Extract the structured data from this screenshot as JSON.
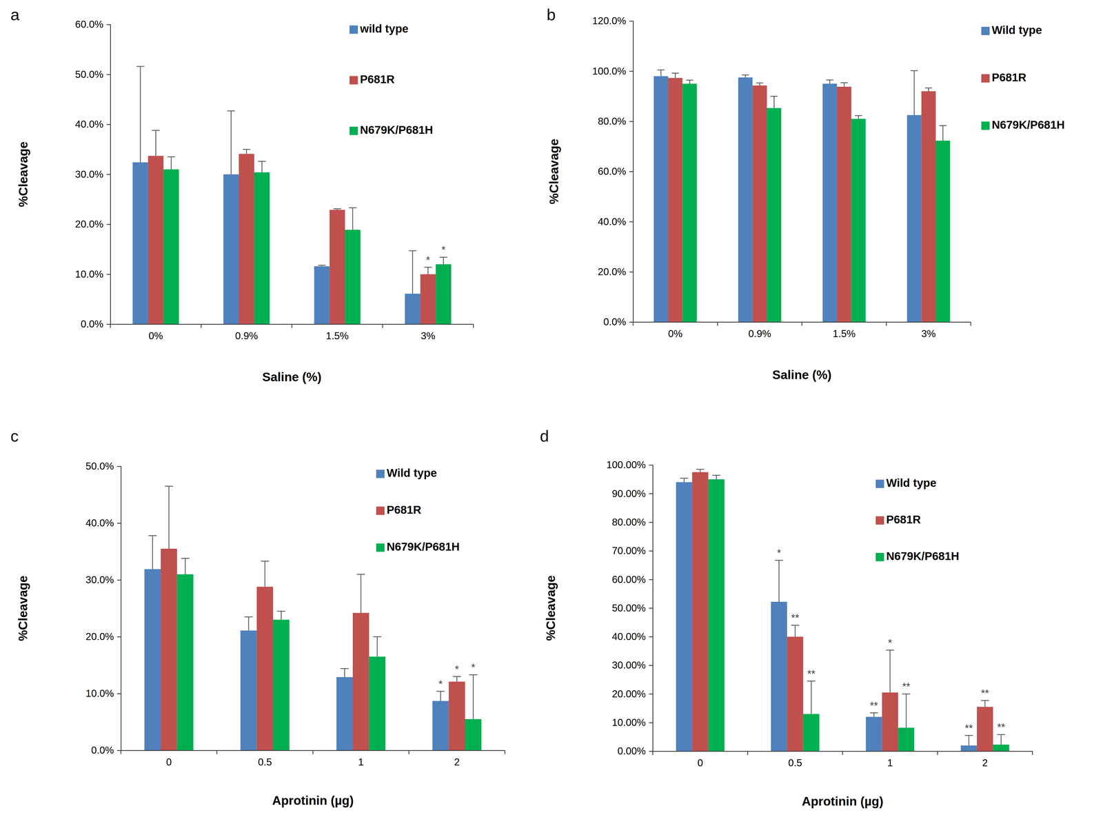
{
  "chart_data": [
    {
      "type": "bar",
      "title": "a",
      "x_label": "Saline (%)",
      "y_label": "%Cleavage",
      "categories": [
        "0%",
        "0.9%",
        "1.5%",
        "3%"
      ],
      "ylim": [
        0,
        60
      ],
      "yticks": [
        {
          "value": 0,
          "label": "0.0%"
        },
        {
          "value": 10,
          "label": "10.0%"
        },
        {
          "value": 20,
          "label": "20.0%"
        },
        {
          "value": 30,
          "label": "30.0%"
        },
        {
          "value": 40,
          "label": "40.0%"
        },
        {
          "value": 50,
          "label": "50.0%"
        },
        {
          "value": 60,
          "label": "60.0%"
        }
      ],
      "legend": "top-right",
      "series": [
        {
          "name": "wild type",
          "color": "#4f81bd",
          "values": [
            32.4,
            30.0,
            11.6,
            6.1
          ],
          "errors": [
            19.2,
            12.7,
            0.2,
            8.6
          ],
          "annotations": [
            null,
            null,
            null,
            null
          ]
        },
        {
          "name": "P681R",
          "color": "#c0504d",
          "values": [
            33.7,
            34.1,
            22.9,
            10.0
          ],
          "errors": [
            5.1,
            0.9,
            0.2,
            1.4
          ],
          "annotations": [
            null,
            null,
            null,
            "*"
          ]
        },
        {
          "name": "N679K/P681H",
          "color": "#00b050",
          "values": [
            31.0,
            30.4,
            18.9,
            12.0
          ],
          "errors": [
            2.5,
            2.2,
            4.4,
            1.4
          ],
          "annotations": [
            null,
            null,
            null,
            "*"
          ]
        }
      ]
    },
    {
      "type": "bar",
      "title": "b",
      "x_label": "Saline (%)",
      "y_label": "%Cleavage",
      "categories": [
        "0%",
        "0.9%",
        "1.5%",
        "3%"
      ],
      "ylim": [
        0,
        120
      ],
      "yticks": [
        {
          "value": 0,
          "label": "0.0%"
        },
        {
          "value": 20,
          "label": "20.0%"
        },
        {
          "value": 40,
          "label": "40.0%"
        },
        {
          "value": 60,
          "label": "60.0%"
        },
        {
          "value": 80,
          "label": "80.0%"
        },
        {
          "value": 100,
          "label": "100.0%"
        },
        {
          "value": 120,
          "label": "120.0%"
        }
      ],
      "legend": "top-right",
      "series": [
        {
          "name": "Wild type",
          "color": "#4f81bd",
          "values": [
            98.0,
            97.5,
            95.0,
            82.5
          ],
          "errors": [
            2.5,
            1.0,
            1.5,
            17.7
          ],
          "annotations": [
            null,
            null,
            null,
            null
          ]
        },
        {
          "name": "P681R",
          "color": "#c0504d",
          "values": [
            97.3,
            94.3,
            93.8,
            92.0
          ],
          "errors": [
            1.9,
            1.0,
            1.6,
            1.3
          ],
          "annotations": [
            null,
            null,
            null,
            null
          ]
        },
        {
          "name": "N679K/P681H",
          "color": "#00b050",
          "values": [
            95.0,
            85.3,
            81.0,
            72.3
          ],
          "errors": [
            1.4,
            4.7,
            1.3,
            6.0
          ],
          "annotations": [
            null,
            null,
            null,
            null
          ]
        }
      ]
    },
    {
      "type": "bar",
      "title": "c",
      "x_label": "Aprotinin (µg)",
      "y_label": "%Cleavage",
      "categories": [
        "0",
        "0.5",
        "1",
        "2"
      ],
      "ylim": [
        0,
        50
      ],
      "yticks": [
        {
          "value": 0,
          "label": "0.0%"
        },
        {
          "value": 10,
          "label": "10.0%"
        },
        {
          "value": 20,
          "label": "20.0%"
        },
        {
          "value": 30,
          "label": "30.0%"
        },
        {
          "value": 40,
          "label": "40.0%"
        },
        {
          "value": 50,
          "label": "50.0%"
        }
      ],
      "legend": "top-right",
      "series": [
        {
          "name": "Wild type",
          "color": "#4f81bd",
          "values": [
            31.9,
            21.1,
            12.9,
            8.7
          ],
          "errors": [
            5.9,
            2.4,
            1.5,
            1.7
          ],
          "annotations": [
            null,
            null,
            null,
            "*"
          ]
        },
        {
          "name": "P681R",
          "color": "#c0504d",
          "values": [
            35.5,
            28.8,
            24.2,
            12.1
          ],
          "errors": [
            11.0,
            4.5,
            6.8,
            0.9
          ],
          "annotations": [
            null,
            null,
            null,
            "*"
          ]
        },
        {
          "name": "N679K/P681H",
          "color": "#00b050",
          "values": [
            31.0,
            23.0,
            16.5,
            5.5
          ],
          "errors": [
            2.8,
            1.5,
            3.5,
            7.8
          ],
          "annotations": [
            null,
            null,
            null,
            "*"
          ]
        }
      ]
    },
    {
      "type": "bar",
      "title": "d",
      "x_label": "Aprotinin (µg)",
      "y_label": "%Cleavage",
      "categories": [
        "0",
        "0.5",
        "1",
        "2"
      ],
      "ylim": [
        0,
        100
      ],
      "yticks": [
        {
          "value": 0,
          "label": "0.00%"
        },
        {
          "value": 10,
          "label": "10.00%"
        },
        {
          "value": 20,
          "label": "20.00%"
        },
        {
          "value": 30,
          "label": "30.00%"
        },
        {
          "value": 40,
          "label": "40.00%"
        },
        {
          "value": 50,
          "label": "50.00%"
        },
        {
          "value": 60,
          "label": "60.00%"
        },
        {
          "value": 70,
          "label": "70.00%"
        },
        {
          "value": 80,
          "label": "80.00%"
        },
        {
          "value": 90,
          "label": "90.00%"
        },
        {
          "value": 100,
          "label": "100.00%"
        }
      ],
      "legend": "top-right",
      "series": [
        {
          "name": "Wild type",
          "color": "#4f81bd",
          "values": [
            94.0,
            52.2,
            12.0,
            2.0
          ],
          "errors": [
            1.4,
            14.5,
            1.4,
            3.5
          ],
          "annotations": [
            null,
            "*",
            "**",
            "**"
          ]
        },
        {
          "name": "P681R",
          "color": "#c0504d",
          "values": [
            97.5,
            40.0,
            20.5,
            15.5
          ],
          "errors": [
            1.0,
            4.0,
            14.8,
            2.2
          ],
          "annotations": [
            null,
            "**",
            "*",
            "**"
          ]
        },
        {
          "name": "N679K/P681H",
          "color": "#00b050",
          "values": [
            95.0,
            13.0,
            8.2,
            2.3
          ],
          "errors": [
            1.4,
            11.5,
            11.8,
            3.5
          ],
          "annotations": [
            null,
            "**",
            "**",
            "**"
          ]
        }
      ]
    }
  ]
}
